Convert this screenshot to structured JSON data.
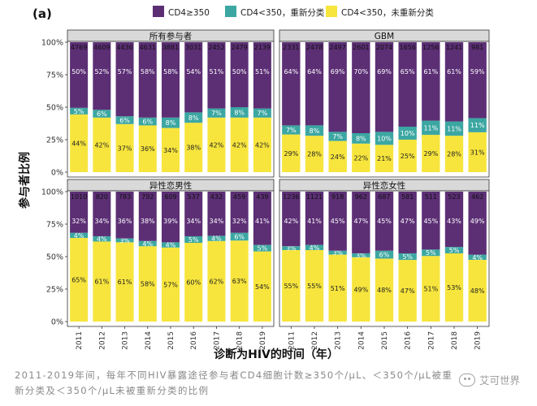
{
  "panel_tag": "(a)",
  "legend": [
    {
      "label": "CD4≥350",
      "color": "#5c2f75"
    },
    {
      "label": "CD4<350，重新分类",
      "color": "#3ca7a2"
    },
    {
      "label": "CD4<350，未重新分类",
      "color": "#f7e53d"
    }
  ],
  "ylabel": "参与者比例",
  "xlabel": "诊断为HIV的时间（年）",
  "caption": "2011-2019年间，每年不同HIV暴露途径参与者CD4细胞计数≥350个/μL、＜350个/μL被重新分类及＜350个/μL未被重新分类的比例",
  "watermark": "艾可世界",
  "chart_data": [
    {
      "type": "bar",
      "stacked": "percent",
      "title": "所有参与者",
      "categories": [
        "2011",
        "2012",
        "2013",
        "2014",
        "2015",
        "2016",
        "2017",
        "2018",
        "2019"
      ],
      "totals": [
        "4769",
        "4609",
        "4436",
        "4631",
        "3881",
        "3031",
        "2452",
        "2479",
        "2139"
      ],
      "series": [
        {
          "name": "CD4<350，未重新分类",
          "values": [
            44,
            42,
            37,
            36,
            34,
            38,
            42,
            42,
            42
          ]
        },
        {
          "name": "CD4<350，重新分类",
          "values": [
            5,
            6,
            6,
            6,
            8,
            8,
            7,
            8,
            7
          ]
        },
        {
          "name": "CD4≥350",
          "values": [
            50,
            52,
            57,
            58,
            58,
            54,
            51,
            50,
            51
          ]
        }
      ],
      "ylim": [
        0,
        100
      ],
      "yticks": [
        "0%",
        "25%",
        "50%",
        "75%",
        "100%"
      ]
    },
    {
      "type": "bar",
      "stacked": "percent",
      "title": "GBM",
      "categories": [
        "2011",
        "2012",
        "2013",
        "2014",
        "2015",
        "2016",
        "2017",
        "2018",
        "2019"
      ],
      "totals": [
        "2331",
        "2478",
        "2497",
        "2601",
        "2074",
        "1656",
        "1256",
        "1241",
        "981"
      ],
      "series": [
        {
          "name": "CD4<350，未重新分类",
          "values": [
            29,
            28,
            24,
            22,
            21,
            25,
            29,
            28,
            31
          ]
        },
        {
          "name": "CD4<350，重新分类",
          "values": [
            7,
            8,
            7,
            8,
            10,
            10,
            11,
            11,
            11
          ]
        },
        {
          "name": "CD4≥350",
          "values": [
            64,
            64,
            69,
            70,
            69,
            65,
            61,
            61,
            59
          ]
        }
      ],
      "ylim": [
        0,
        100
      ],
      "yticks": [
        "0%",
        "25%",
        "50%",
        "75%",
        "100%"
      ]
    },
    {
      "type": "bar",
      "stacked": "percent",
      "title": "异性恋男性",
      "categories": [
        "2011",
        "2012",
        "2013",
        "2014",
        "2015",
        "2016",
        "2017",
        "2018",
        "2019"
      ],
      "totals": [
        "1010",
        "820",
        "783",
        "792",
        "609",
        "537",
        "432",
        "459",
        "439"
      ],
      "series": [
        {
          "name": "CD4<350，未重新分类",
          "values": [
            65,
            61,
            61,
            58,
            57,
            60,
            62,
            63,
            54
          ]
        },
        {
          "name": "CD4<350，重新分类",
          "values": [
            4,
            4,
            3,
            4,
            4,
            5,
            4,
            6,
            5
          ]
        },
        {
          "name": "CD4≥350",
          "values": [
            32,
            34,
            36,
            38,
            39,
            34,
            34,
            32,
            41
          ]
        }
      ],
      "ylim": [
        0,
        100
      ],
      "yticks": [
        "0%",
        "25%",
        "50%",
        "75%",
        "100%"
      ]
    },
    {
      "type": "bar",
      "stacked": "percent",
      "title": "异性恋女性",
      "categories": [
        "2011",
        "2012",
        "2013",
        "2014",
        "2015",
        "2016",
        "2017",
        "2018",
        "2019"
      ],
      "totals": [
        "1236",
        "1121",
        "918",
        "962",
        "687",
        "581",
        "511",
        "523",
        "462"
      ],
      "series": [
        {
          "name": "CD4<350，未重新分类",
          "values": [
            55,
            55,
            51,
            49,
            48,
            47,
            51,
            53,
            48
          ]
        },
        {
          "name": "CD4<350，重新分类",
          "values": [
            3,
            4,
            3,
            3,
            6,
            5,
            5,
            5,
            4
          ]
        },
        {
          "name": "CD4≥350",
          "values": [
            42,
            41,
            45,
            47,
            45,
            47,
            45,
            43,
            49
          ]
        }
      ],
      "ylim": [
        0,
        100
      ],
      "yticks": [
        "0%",
        "25%",
        "50%",
        "75%",
        "100%"
      ]
    }
  ]
}
